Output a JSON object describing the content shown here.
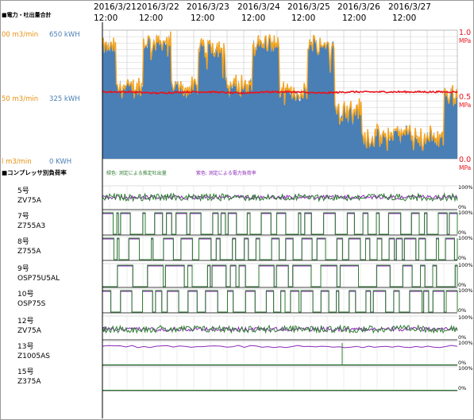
{
  "header": {
    "dates": [
      "2016/3/21",
      "2016/3/22",
      "2016/3/23",
      "2016/3/24",
      "2016/3/25",
      "2016/3/26",
      "2016/3/27"
    ],
    "time_label": "12:00"
  },
  "top_chart": {
    "title": "■電力・吐出量合計",
    "axis_flow_labels": [
      "00 m3/min",
      "50 m3/min",
      "l m3/min"
    ],
    "axis_power_labels": [
      "650 kWH",
      "325 kWH",
      "0 KWH"
    ],
    "axis_pressure_labels": [
      "1.0",
      "MPa",
      "0.5",
      "MPa",
      "0.0",
      "MPa"
    ],
    "colors": {
      "power": "#4a7fb5",
      "flow": "#f5a623",
      "pressure": "#e8141b"
    }
  },
  "bottom_chart": {
    "title": "■コンプレッサ別負荷率",
    "legend_green": "緑色: 測定による推定吐出量",
    "legend_purple": "紫色: 測定による電力負荷率",
    "colors": {
      "green": "#2f7d32",
      "purple": "#8b2bb8"
    },
    "pct_top": "100%",
    "pct_bottom": "0%",
    "rows": [
      {
        "no": "5号",
        "model": "ZV75A"
      },
      {
        "no": "7号",
        "model": "Z755A3"
      },
      {
        "no": "8号",
        "model": "Z755A"
      },
      {
        "no": "9号",
        "model": "OSP75U5AL"
      },
      {
        "no": "10号",
        "model": "OSP75S"
      },
      {
        "no": "12号",
        "model": "ZV75A"
      },
      {
        "no": "13号",
        "model": "Z1005AS"
      },
      {
        "no": "15号",
        "model": "Z375A"
      }
    ]
  },
  "chart_data": {
    "type": "area",
    "x": [
      "2016/3/21 12:00",
      "2016/3/22 00:00",
      "2016/3/22 12:00",
      "2016/3/23 00:00",
      "2016/3/23 12:00",
      "2016/3/24 00:00",
      "2016/3/24 12:00",
      "2016/3/25 00:00",
      "2016/3/25 12:00",
      "2016/3/26 00:00",
      "2016/3/26 12:00",
      "2016/3/27 00:00",
      "2016/3/27 12:00",
      "2016/3/28 00:00"
    ],
    "series": [
      {
        "values": [
          560,
          360,
          590,
          360,
          570,
          370,
          580,
          330,
          580,
          250,
          110,
          130,
          110,
          330
        ]
      },
      {
        "values": [
          0.52,
          0.52,
          0.51,
          0.52,
          0.52,
          0.51,
          0.52,
          0.52,
          0.51,
          0.52,
          0.52,
          0.52,
          0.52,
          0.52
        ]
      }
    ],
    "ylim_power": [
      0,
      650
    ],
    "ylim_pressure": [
      0,
      1.0
    ],
    "grid": true
  }
}
